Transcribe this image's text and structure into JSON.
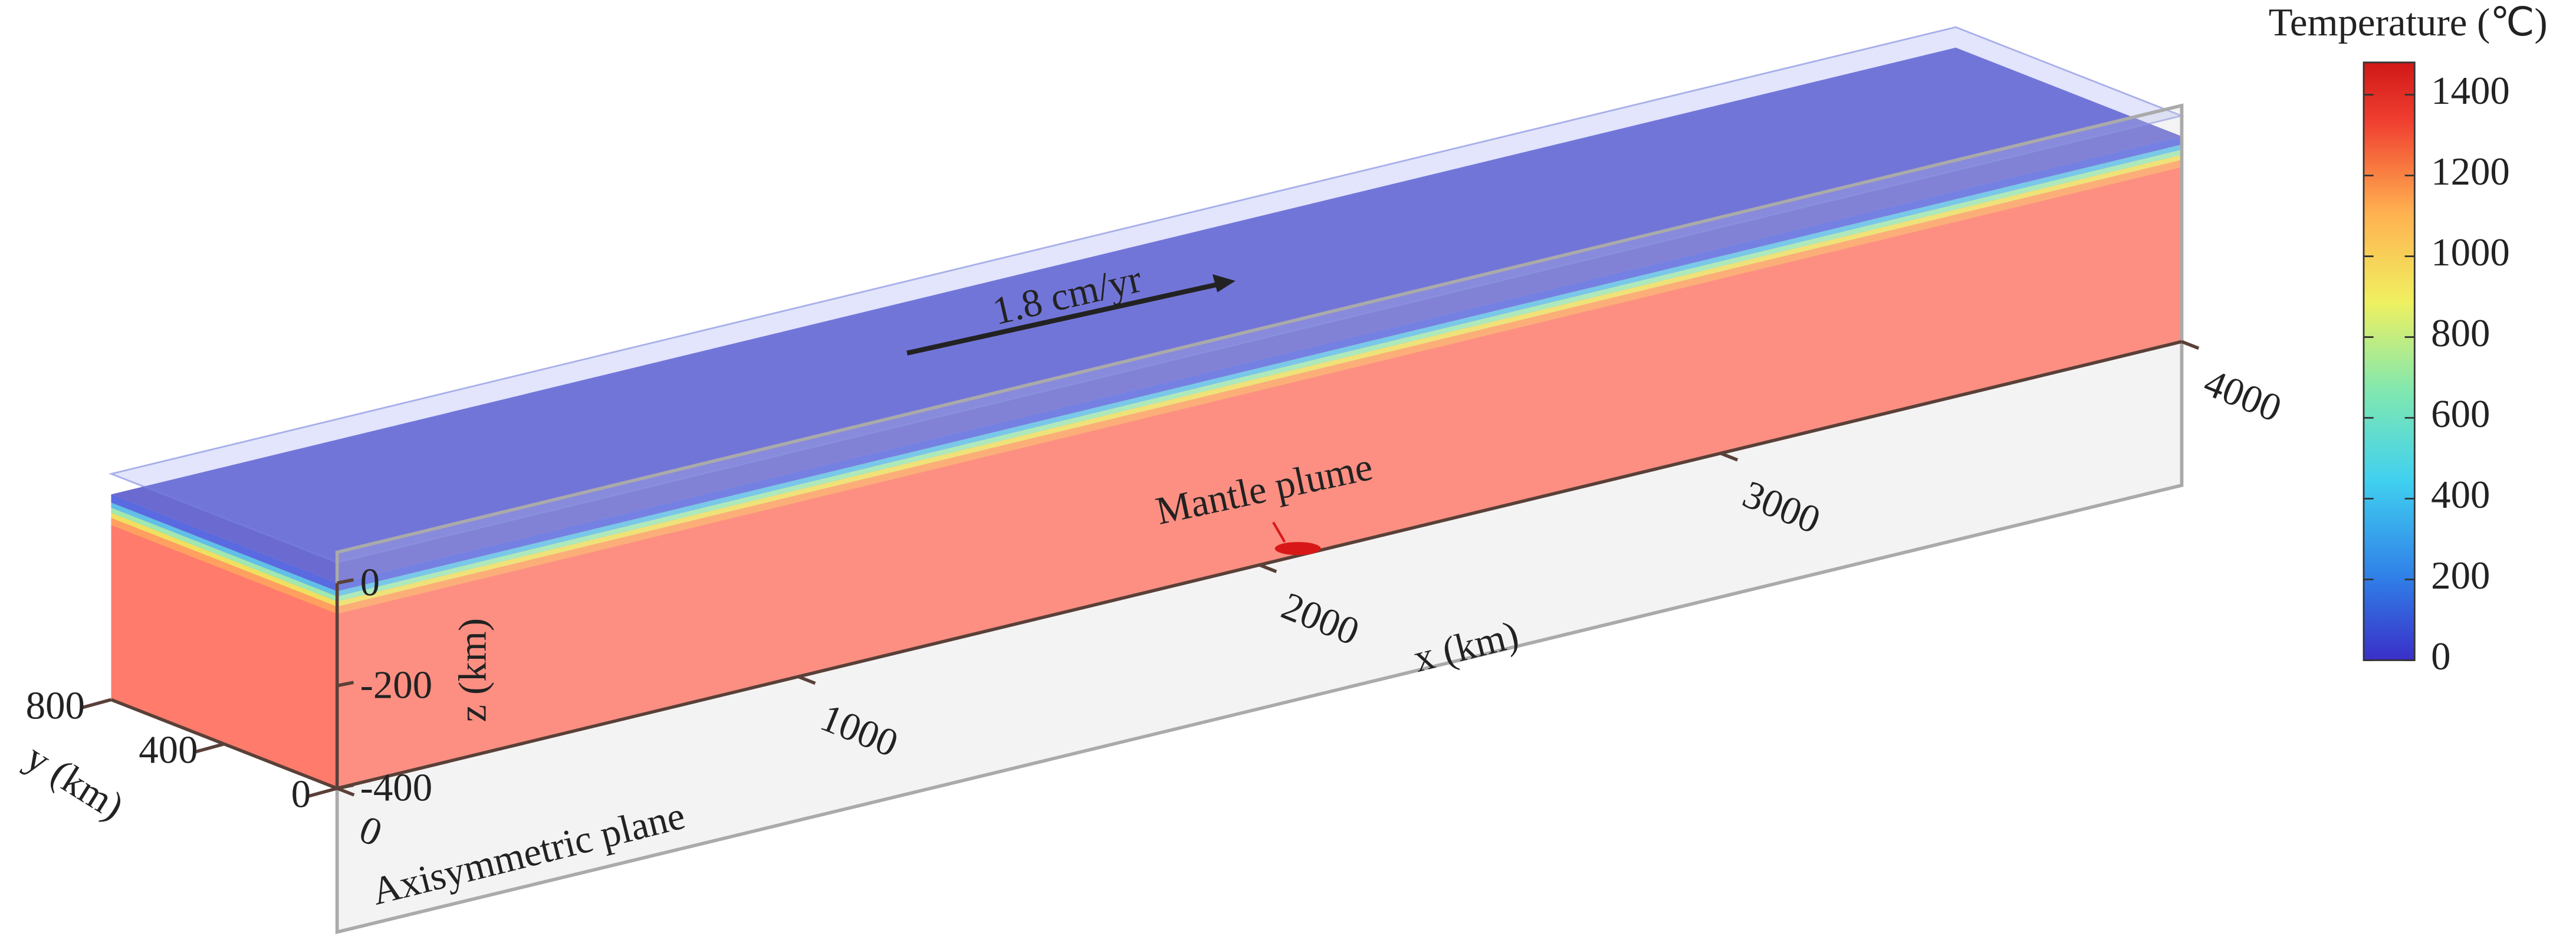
{
  "colorbar": {
    "title": "Temperature (℃)",
    "range": [
      0,
      1480
    ],
    "ticks": [
      0,
      200,
      400,
      600,
      800,
      1000,
      1200,
      1400
    ]
  },
  "axes": {
    "x": {
      "label": "x (km)",
      "ticks": [
        0,
        1000,
        2000,
        3000,
        4000
      ]
    },
    "y": {
      "label": "y (km)",
      "ticks": [
        0,
        400,
        800
      ]
    },
    "z": {
      "label": "z (km)",
      "ticks": [
        0,
        -200,
        -400
      ]
    }
  },
  "annotations": {
    "velocity": "1.8 cm/yr",
    "plume": "Mantle plume",
    "plane": "Axisymmetric plane"
  }
}
